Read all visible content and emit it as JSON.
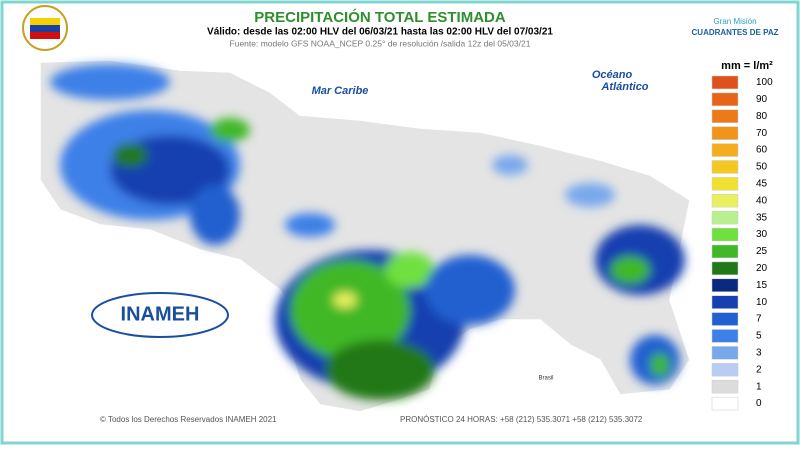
{
  "header": {
    "title": "PRECIPITACIÓN TOTAL ESTIMADA",
    "subtitle": "Válido: desde las 02:00 HLV del 06/03/21 hasta las 02:00 HLV del 07/03/21",
    "source": "Fuente: modelo GFS NOAA_NCEP 0.25° de resolución /salida 12z del 05/03/21"
  },
  "partner_logo": {
    "line1": "Gran Misión",
    "line2": "CUADRANTES DE PAZ"
  },
  "map": {
    "labels": [
      "Mar Caribe",
      "Océano",
      "Atlántico",
      "Brasil"
    ]
  },
  "brand": "INAMEH",
  "legend": {
    "title": "mm = l/m²",
    "items": [
      {
        "label": 100,
        "color": "#e0501a"
      },
      {
        "label": 90,
        "color": "#e8641a"
      },
      {
        "label": 80,
        "color": "#ec7a1a"
      },
      {
        "label": 70,
        "color": "#f0941a"
      },
      {
        "label": 60,
        "color": "#f5ad1f"
      },
      {
        "label": 50,
        "color": "#f5c81f"
      },
      {
        "label": 45,
        "color": "#f0e030"
      },
      {
        "label": 40,
        "color": "#e8f060"
      },
      {
        "label": 35,
        "color": "#b8f090"
      },
      {
        "label": 30,
        "color": "#70e040"
      },
      {
        "label": 25,
        "color": "#40b828"
      },
      {
        "label": 20,
        "color": "#207818"
      },
      {
        "label": 15,
        "color": "#0a2a80"
      },
      {
        "label": 10,
        "color": "#1840b0"
      },
      {
        "label": 7,
        "color": "#2060d0"
      },
      {
        "label": 5,
        "color": "#3c80e8"
      },
      {
        "label": 3,
        "color": "#78a8ec"
      },
      {
        "label": 2,
        "color": "#b8ccf4"
      },
      {
        "label": 1,
        "color": "#dcdcdc"
      },
      {
        "label": 0,
        "color": "#ffffff"
      }
    ]
  },
  "footer": {
    "copyright": "© Todos los Derechos Reservados INAMEH 2021",
    "phone": "PRONÓSTICO 24 HORAS: +58 (212) 535.3071 +58 (212) 535.3072"
  }
}
